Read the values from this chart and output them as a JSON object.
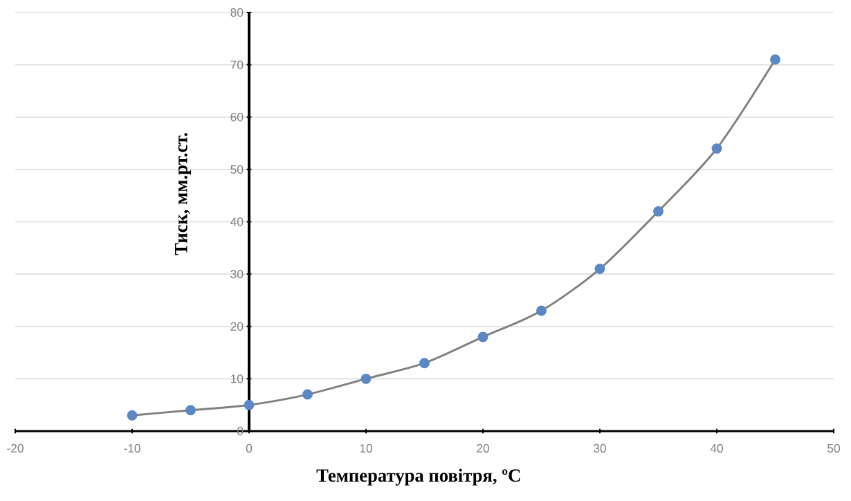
{
  "chart_data": {
    "type": "line",
    "xlabel": "Температура повітря, ºC",
    "ylabel": "Тиск, мм.рт.ст.",
    "x": [
      -10,
      -5,
      0,
      5,
      10,
      15,
      20,
      25,
      30,
      35,
      40,
      45
    ],
    "values": [
      3,
      4,
      5,
      7,
      10,
      13,
      18,
      23,
      31,
      42,
      54,
      71
    ],
    "color": "#5b87c5",
    "marker": "circle",
    "line_style": "solid",
    "grid": "y",
    "xlim": [
      -20,
      50
    ],
    "xticks": [
      -20,
      -10,
      0,
      10,
      20,
      30,
      40,
      50
    ],
    "ylim": [
      0,
      80
    ],
    "yticks": [
      0,
      10,
      20,
      30,
      40,
      50,
      60,
      70,
      80
    ]
  }
}
